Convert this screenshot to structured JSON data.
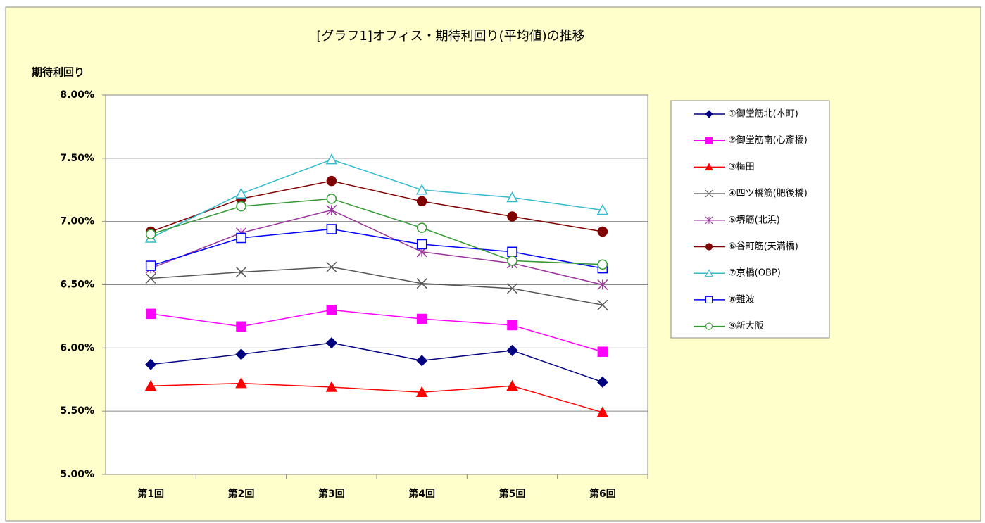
{
  "chart_data": {
    "type": "line",
    "title": "[グラフ1]オフィス・期待利回り(平均値)の推移",
    "y_label": "期待利回り",
    "categories": [
      "第1回",
      "第2回",
      "第3回",
      "第4回",
      "第5回",
      "第6回"
    ],
    "ylim": [
      5,
      8
    ],
    "yticks": [
      {
        "value": 5,
        "label": "5.00%"
      },
      {
        "value": 5.5,
        "label": "5.50%"
      },
      {
        "value": 6,
        "label": "6.00%"
      },
      {
        "value": 6.5,
        "label": "6.50%"
      },
      {
        "value": 7,
        "label": "7.00%"
      },
      {
        "value": 7.5,
        "label": "7.50%"
      },
      {
        "value": 8,
        "label": "8.00%"
      }
    ],
    "grid": true,
    "legend": "right",
    "series": [
      {
        "name": "①御堂筋北(本町)",
        "color": "#000080",
        "marker": "diamond",
        "values": [
          5.87,
          5.95,
          6.04,
          5.9,
          5.98,
          5.73
        ]
      },
      {
        "name": "②御堂筋南(心斎橋)",
        "color": "#ff00ff",
        "marker": "square",
        "values": [
          6.27,
          6.17,
          6.3,
          6.23,
          6.18,
          5.97
        ]
      },
      {
        "name": "③梅田",
        "color": "#ff0000",
        "marker": "triangle",
        "values": [
          5.7,
          5.72,
          5.69,
          5.65,
          5.7,
          5.49
        ]
      },
      {
        "name": "④四ツ橋筋(肥後橋)",
        "color": "#555555",
        "marker": "x",
        "values": [
          6.55,
          6.6,
          6.64,
          6.51,
          6.47,
          6.34
        ]
      },
      {
        "name": "⑤堺筋(北浜)",
        "color": "#993399",
        "marker": "star",
        "values": [
          6.63,
          6.91,
          7.09,
          6.76,
          6.67,
          6.5
        ]
      },
      {
        "name": "⑥谷町筋(天満橋)",
        "color": "#800000",
        "marker": "circle",
        "values": [
          6.92,
          7.18,
          7.32,
          7.16,
          7.04,
          6.92
        ]
      },
      {
        "name": "⑦京橋(OBP)",
        "color": "#33bbcc",
        "marker": "triangle-open",
        "values": [
          6.87,
          7.22,
          7.49,
          7.25,
          7.19,
          7.09
        ]
      },
      {
        "name": "⑧難波",
        "color": "#0000ff",
        "marker": "square-open",
        "values": [
          6.65,
          6.87,
          6.94,
          6.82,
          6.76,
          6.63
        ]
      },
      {
        "name": "⑨新大阪",
        "color": "#339933",
        "marker": "circle-open",
        "values": [
          6.9,
          7.12,
          7.18,
          6.95,
          6.69,
          6.66
        ]
      }
    ]
  }
}
